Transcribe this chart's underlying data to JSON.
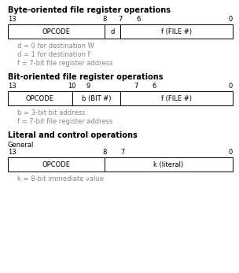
{
  "bg_color": "#ffffff",
  "text_color": "#000000",
  "gray_color": "#888888",
  "section1_title": "Byte-oriented file register operations",
  "section2_title": "Bit-oriented file register operations",
  "section3_title": "Literal and control operations",
  "section3_sub": "General",
  "box1_notes": [
    "d = 0 for destination W",
    "d = 1 for destination f",
    "f = 7-bit file register address"
  ],
  "box2_notes": [
    "b = 3-bit bit address",
    "f = 7-bit file register address"
  ],
  "box3_notes": [
    "k = 8-bit immediate value"
  ],
  "fig_width": 3.04,
  "fig_height": 3.47,
  "dpi": 100
}
